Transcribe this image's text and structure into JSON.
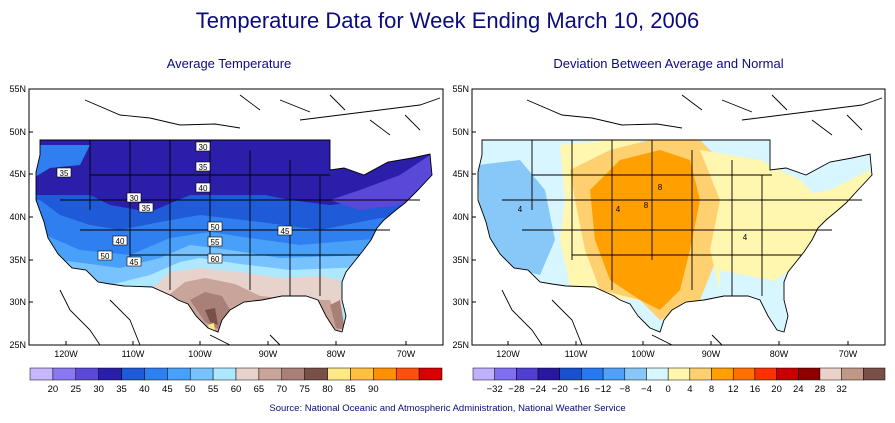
{
  "title": "Temperature Data for Week Ending March 10, 2006",
  "source": "Source:  National Oceanic and Atmospheric Administration, National Weather Service",
  "left_map": {
    "title": "Average Temperature",
    "lat_labels": [
      "55N",
      "50N",
      "45N",
      "40N",
      "35N",
      "30N",
      "25N"
    ],
    "lon_labels": [
      "120W",
      "110W",
      "100W",
      "90W",
      "80W",
      "70W"
    ],
    "contour_labels": [
      "30",
      "35",
      "35",
      "40",
      "30",
      "35",
      "50",
      "55",
      "40",
      "45",
      "50",
      "45",
      "60"
    ],
    "legend": {
      "labels": [
        "20",
        "25",
        "30",
        "35",
        "40",
        "45",
        "50",
        "55",
        "60",
        "65",
        "70",
        "75",
        "80",
        "85",
        "90"
      ],
      "colors": [
        "#c8b6ff",
        "#8a78ee",
        "#5a48d8",
        "#2b1ea8",
        "#1f5ad8",
        "#2f7ff0",
        "#48a0f8",
        "#78c2ff",
        "#aee8ff",
        "#e8d2cc",
        "#c8a49a",
        "#a88078",
        "#785048",
        "#ffe888",
        "#ffc040",
        "#ff9000",
        "#ff5010",
        "#d80000"
      ]
    }
  },
  "right_map": {
    "title": "Deviation Between Average and Normal",
    "lat_labels": [
      "55N",
      "50N",
      "45N",
      "40N",
      "35N",
      "30N",
      "25N"
    ],
    "lon_labels": [
      "120W",
      "110W",
      "100W",
      "90W",
      "80W",
      "70W"
    ],
    "contour_labels": [
      "8",
      "4",
      "8",
      "4",
      "4"
    ],
    "legend": {
      "labels": [
        "−32",
        "−28",
        "−24",
        "−20",
        "−16",
        "−12",
        "−8",
        "−4",
        "0",
        "4",
        "8",
        "12",
        "16",
        "20",
        "24",
        "28",
        "32"
      ],
      "colors": [
        "#c0b0ff",
        "#8070f0",
        "#5040d0",
        "#2818a0",
        "#1850d0",
        "#2878f0",
        "#50a0f8",
        "#88c8f8",
        "#d8f6ff",
        "#fff6b0",
        "#ffd070",
        "#ffa000",
        "#ff7000",
        "#ff3000",
        "#c80000",
        "#900000",
        "#ead2c8",
        "#c09888",
        "#785048"
      ]
    }
  }
}
